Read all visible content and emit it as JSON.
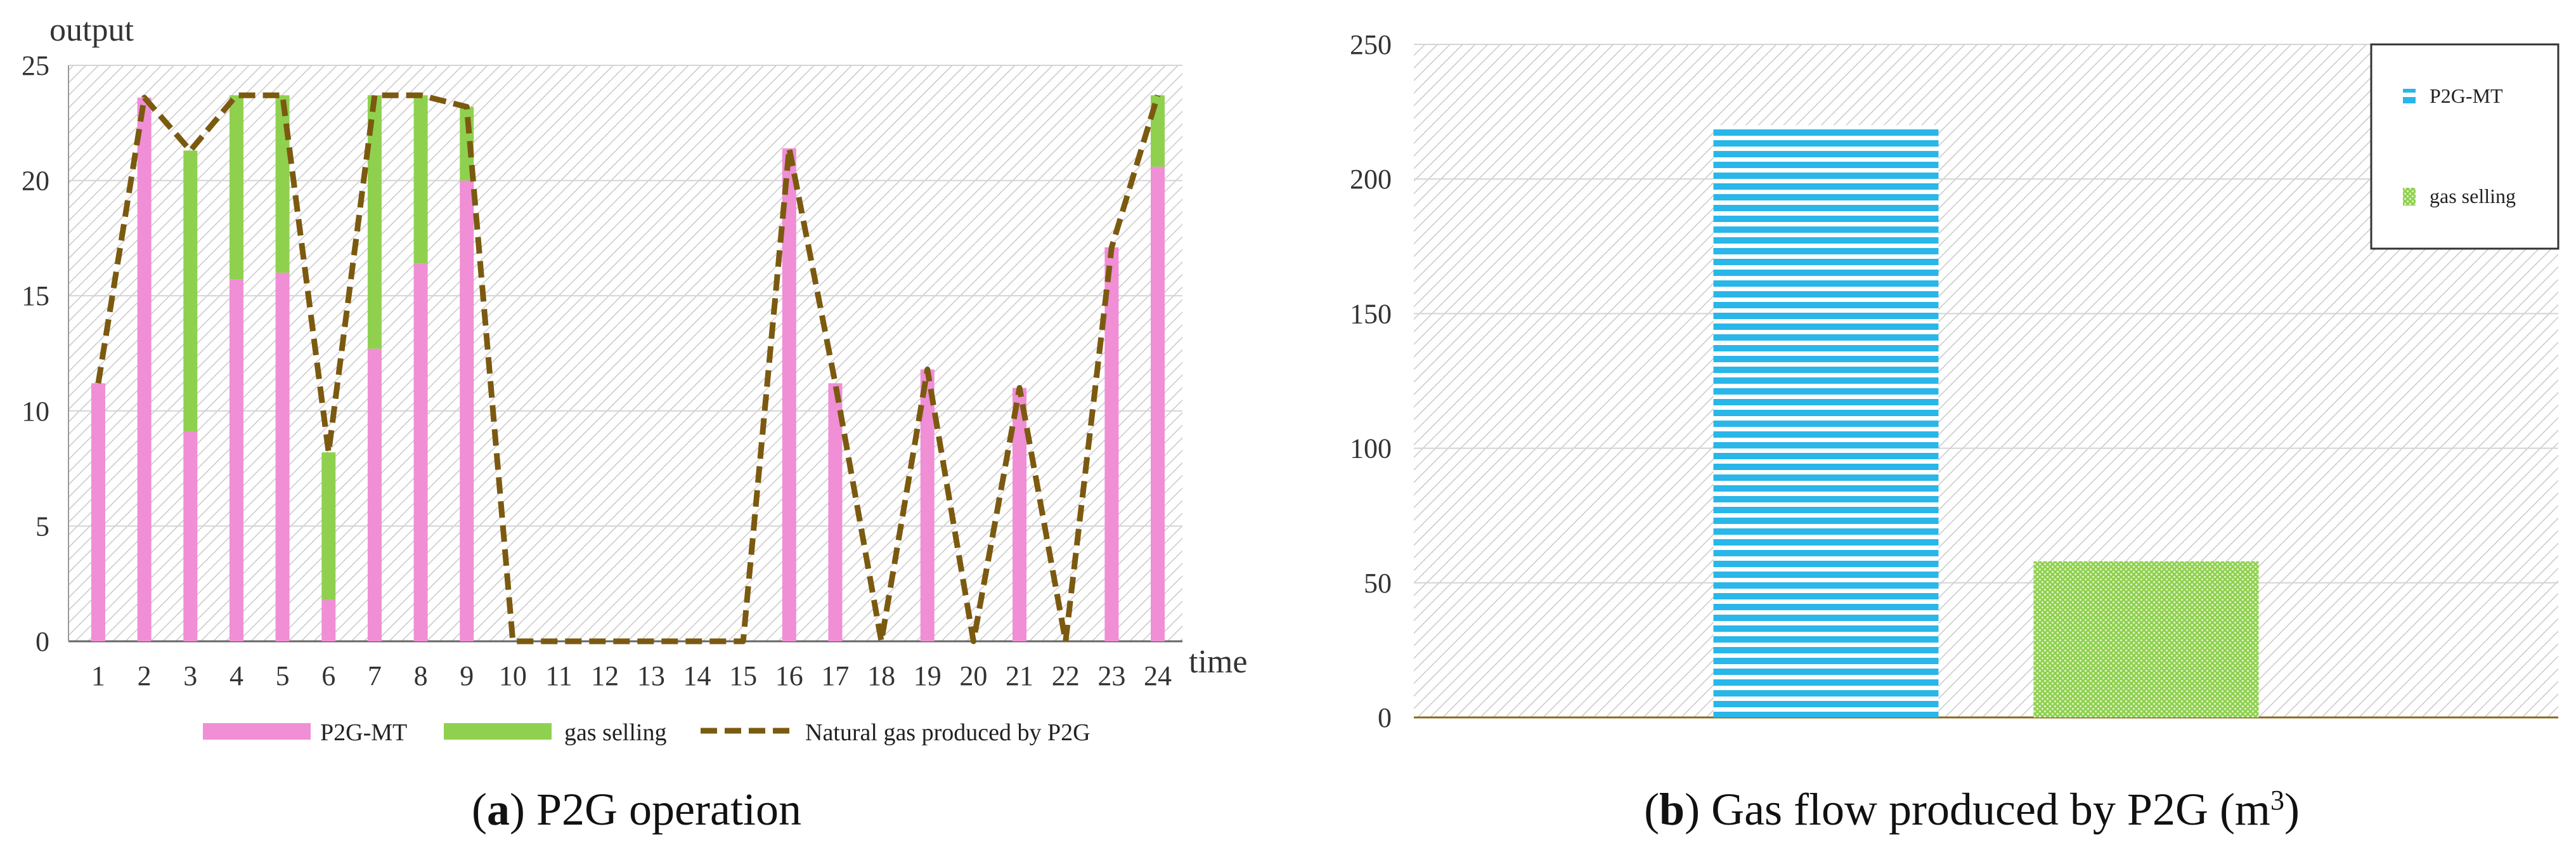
{
  "chart_data": [
    {
      "panel": "a",
      "type": "bar",
      "stacked": true,
      "caption_letter": "a",
      "caption_text": " P2G operation",
      "ylabel": "output",
      "xlabel": "time",
      "ylim": [
        0,
        25
      ],
      "yticks": [
        "0",
        "5",
        "10",
        "15",
        "20",
        "25"
      ],
      "categories": [
        "1",
        "2",
        "3",
        "4",
        "5",
        "6",
        "7",
        "8",
        "9",
        "10",
        "11",
        "12",
        "13",
        "14",
        "15",
        "16",
        "17",
        "18",
        "19",
        "20",
        "21",
        "22",
        "23",
        "24"
      ],
      "grid": true,
      "legend_position": "bottom",
      "series": [
        {
          "name": "P2G-MT",
          "kind": "bar",
          "color": "#f08ed6",
          "values": [
            11.2,
            23.6,
            9.1,
            15.7,
            16.0,
            1.8,
            12.7,
            16.4,
            20.0,
            0,
            0,
            0,
            0,
            0,
            0,
            21.4,
            11.2,
            0,
            11.8,
            0,
            11.0,
            0,
            17.1,
            20.6
          ]
        },
        {
          "name": "gas selling",
          "kind": "bar",
          "color": "#8fd14f",
          "values": [
            0,
            0,
            12.2,
            8.0,
            7.7,
            6.4,
            11.0,
            7.3,
            3.2,
            0,
            0,
            0,
            0,
            0,
            0,
            0,
            0,
            0,
            0,
            0,
            0,
            0,
            0,
            3.1
          ]
        },
        {
          "name": "Natural gas produced by P2G",
          "kind": "line",
          "dashed": true,
          "color": "#7b5a10",
          "values": [
            11.2,
            23.6,
            21.3,
            23.7,
            23.7,
            8.2,
            23.7,
            23.7,
            23.2,
            0,
            0,
            0,
            0,
            0,
            0,
            21.4,
            11.2,
            0,
            11.8,
            0,
            11.0,
            0,
            17.1,
            23.7
          ]
        }
      ]
    },
    {
      "panel": "b",
      "type": "bar",
      "caption_letter": "b",
      "caption_text": " Gas flow produced by P2G (m",
      "caption_sup": "3",
      "caption_close": ")",
      "ylim": [
        0,
        250
      ],
      "yticks": [
        "0",
        "50",
        "100",
        "150",
        "200",
        "250"
      ],
      "grid": true,
      "legend_position": "top-right",
      "series": [
        {
          "name": "P2G-MT",
          "color": "#29b6e8",
          "value": 220
        },
        {
          "name": "gas selling",
          "color": "#8fd14f",
          "value": 58
        }
      ]
    }
  ]
}
